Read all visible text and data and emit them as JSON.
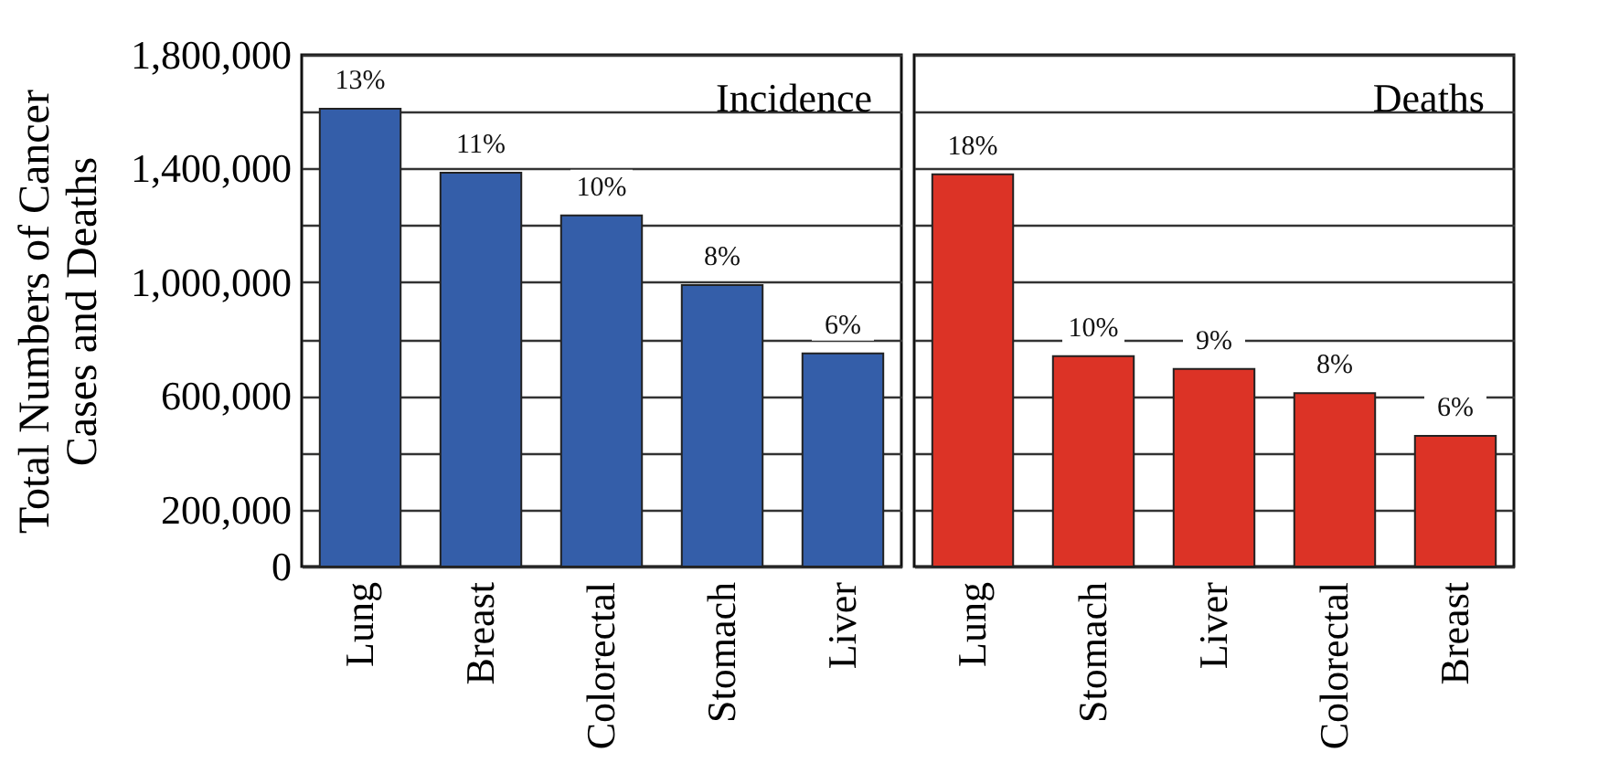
{
  "chart_data": [
    {
      "type": "bar",
      "title": "Incidence",
      "ylabel": "Total Numbers of Cancer Cases and Deaths",
      "categories": [
        "Lung",
        "Breast",
        "Colorectal",
        "Stomach",
        "Liver"
      ],
      "values": [
        1610000,
        1385000,
        1235000,
        990000,
        750000
      ],
      "color": "#345ea9",
      "annotations": [
        {
          "text": "13%",
          "x": "Lung",
          "y": 1610000
        },
        {
          "text": "11%",
          "x": "Breast",
          "y": 1385000
        },
        {
          "text": "10%",
          "x": "Colorectal",
          "y": 1235000
        },
        {
          "text": "8%",
          "x": "Stomach",
          "y": 990000
        },
        {
          "text": "6%",
          "x": "Liver",
          "y": 750000
        }
      ],
      "ylim": [
        0,
        1800000
      ],
      "yticks": [
        0,
        {
          "value": 200000,
          "label": "200,000"
        },
        {
          "value": 400000,
          "label": null
        },
        {
          "value": 600000,
          "label": "600,000"
        },
        {
          "value": 800000,
          "label": null
        },
        {
          "value": 1000000,
          "label": "1,000,000"
        },
        {
          "value": 1200000,
          "label": null
        },
        {
          "value": 1400000,
          "label": "1,400,000"
        },
        {
          "value": 1600000,
          "label": null
        },
        {
          "value": 1800000,
          "label": "1,800,000"
        }
      ],
      "grid": "y"
    },
    {
      "type": "bar",
      "title": "Deaths",
      "categories": [
        "Lung",
        "Stomach",
        "Liver",
        "Colorectal",
        "Breast"
      ],
      "values": [
        1380000,
        740000,
        695000,
        610000,
        460000
      ],
      "color": "#dc3326",
      "annotations": [
        {
          "text": "18%",
          "x": "Lung",
          "y": 1380000
        },
        {
          "text": "10%",
          "x": "Stomach",
          "y": 740000
        },
        {
          "text": "9%",
          "x": "Liver",
          "y": 695000
        },
        {
          "text": "8%",
          "x": "Colorectal",
          "y": 610000
        },
        {
          "text": "6%",
          "x": "Breast",
          "y": 460000
        }
      ],
      "ylim": [
        0,
        1800000
      ],
      "yticks": [
        {
          "value": 0,
          "label": null
        },
        {
          "value": 200000,
          "label": null
        },
        {
          "value": 400000,
          "label": null
        },
        {
          "value": 600000,
          "label": null
        },
        {
          "value": 800000,
          "label": null
        },
        {
          "value": 1000000,
          "label": null
        },
        {
          "value": 1200000,
          "label": null
        },
        {
          "value": 1400000,
          "label": null
        },
        {
          "value": 1600000,
          "label": null
        },
        {
          "value": 1800000,
          "label": null
        }
      ],
      "grid": "y",
      "tick_labels": "x"
    }
  ]
}
